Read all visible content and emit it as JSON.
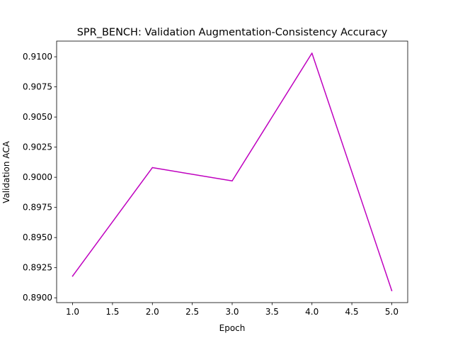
{
  "chart_data": {
    "type": "line",
    "title": "SPR_BENCH: Validation Augmentation-Consistency Accuracy",
    "xlabel": "Epoch",
    "ylabel": "Validation ACA",
    "xlim": [
      0.8,
      5.2
    ],
    "ylim": [
      0.8896,
      0.9113
    ],
    "xticks": [
      "1.0",
      "1.5",
      "2.0",
      "2.5",
      "3.0",
      "3.5",
      "4.0",
      "4.5",
      "5.0"
    ],
    "yticks": [
      "0.8900",
      "0.8925",
      "0.8950",
      "0.8975",
      "0.9000",
      "0.9025",
      "0.9050",
      "0.9075",
      "0.9100"
    ],
    "grid": false,
    "series": [
      {
        "color": "#bf00bf",
        "x": [
          1,
          2,
          3,
          4,
          5
        ],
        "y": [
          0.8918,
          0.9008,
          0.8997,
          0.9103,
          0.8906
        ]
      }
    ]
  }
}
